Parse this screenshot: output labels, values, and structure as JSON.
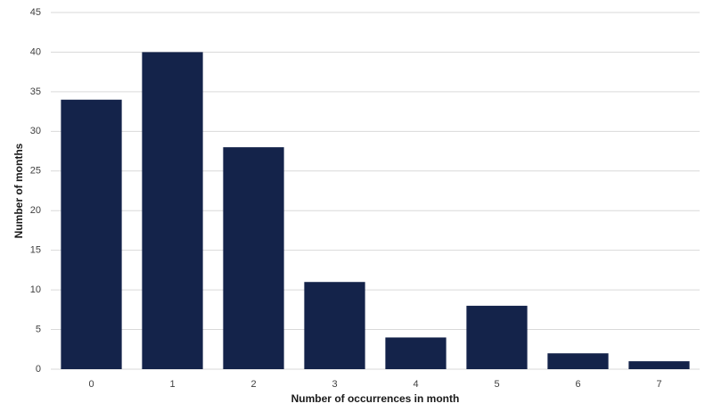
{
  "chart_data": {
    "type": "bar",
    "x_label": "Number of occurrences in month",
    "y_label": "Number of months",
    "categories": [
      "0",
      "1",
      "2",
      "3",
      "4",
      "5",
      "6",
      "7"
    ],
    "values": [
      34,
      40,
      28,
      11,
      4,
      8,
      2,
      1
    ],
    "color": "#14234a",
    "ylim": [
      0,
      45
    ],
    "yticks": [
      0,
      5,
      10,
      15,
      20,
      25,
      30,
      35,
      40,
      45
    ],
    "grid": true
  }
}
